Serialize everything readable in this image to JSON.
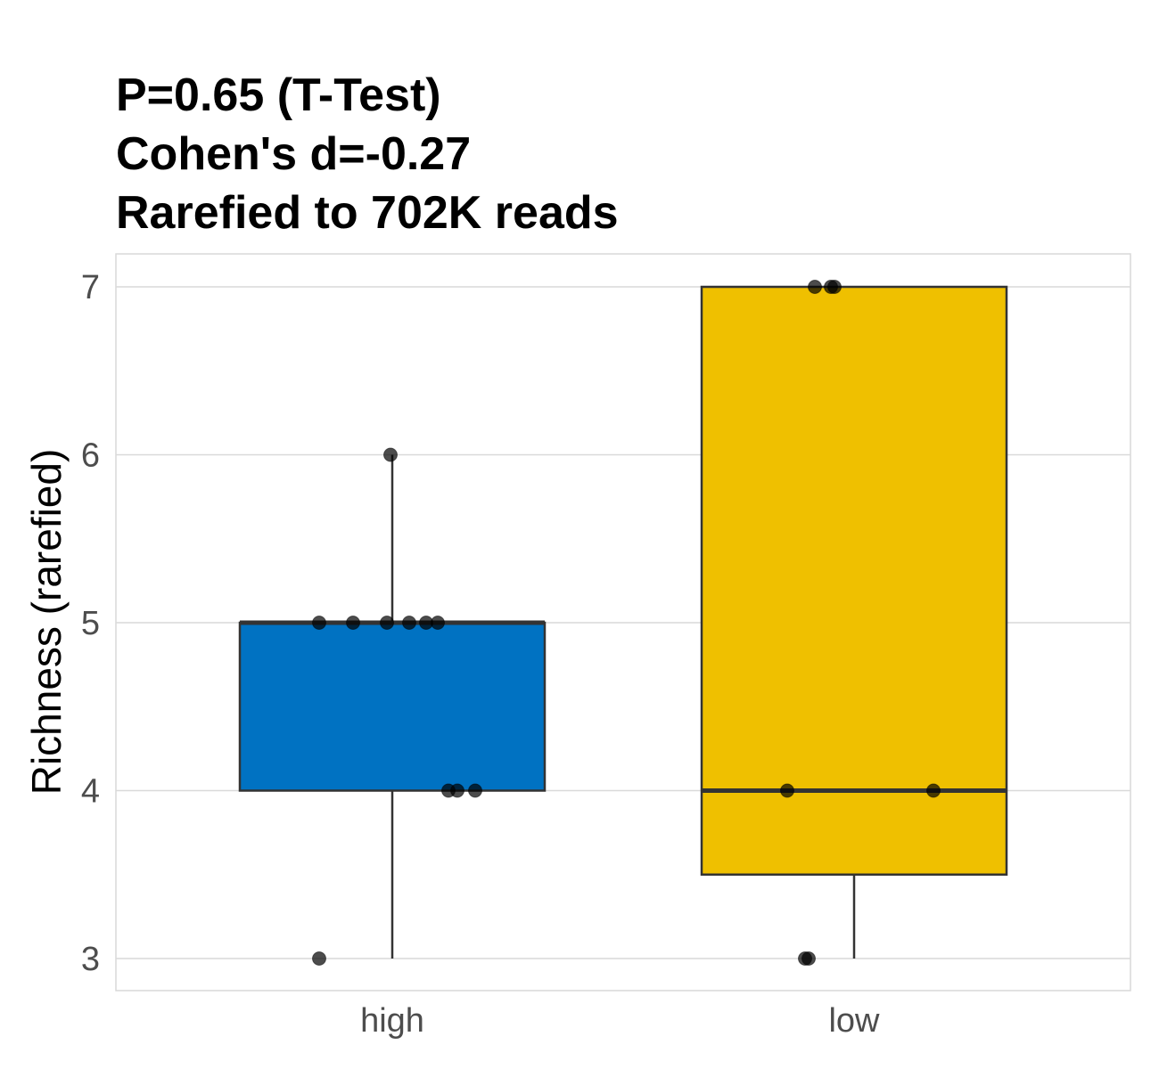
{
  "chart_data": {
    "type": "boxplot",
    "title_lines": [
      "P=0.65 (T-Test)",
      "Cohen's d=-0.27",
      "Rarefied to 702K reads"
    ],
    "xlabel": "",
    "ylabel": "Richness (rarefied)",
    "ylim": [
      2.8,
      7.2
    ],
    "yticks": [
      3,
      4,
      5,
      6,
      7
    ],
    "grid": true,
    "categories": [
      "high",
      "low"
    ],
    "groups": [
      {
        "name": "high",
        "color": "#0072C2",
        "whisker_low": 3,
        "q1": 4,
        "median": 5,
        "q3": 5,
        "whisker_high": 6,
        "points": [
          5,
          5,
          5,
          5,
          5,
          5,
          4,
          4,
          4,
          6,
          3
        ]
      },
      {
        "name": "low",
        "color": "#EFC000",
        "whisker_low": 3,
        "q1": 3.5,
        "median": 4,
        "q3": 7,
        "whisker_high": 7,
        "points": [
          7,
          7,
          7,
          4,
          4,
          3,
          3
        ]
      }
    ]
  }
}
